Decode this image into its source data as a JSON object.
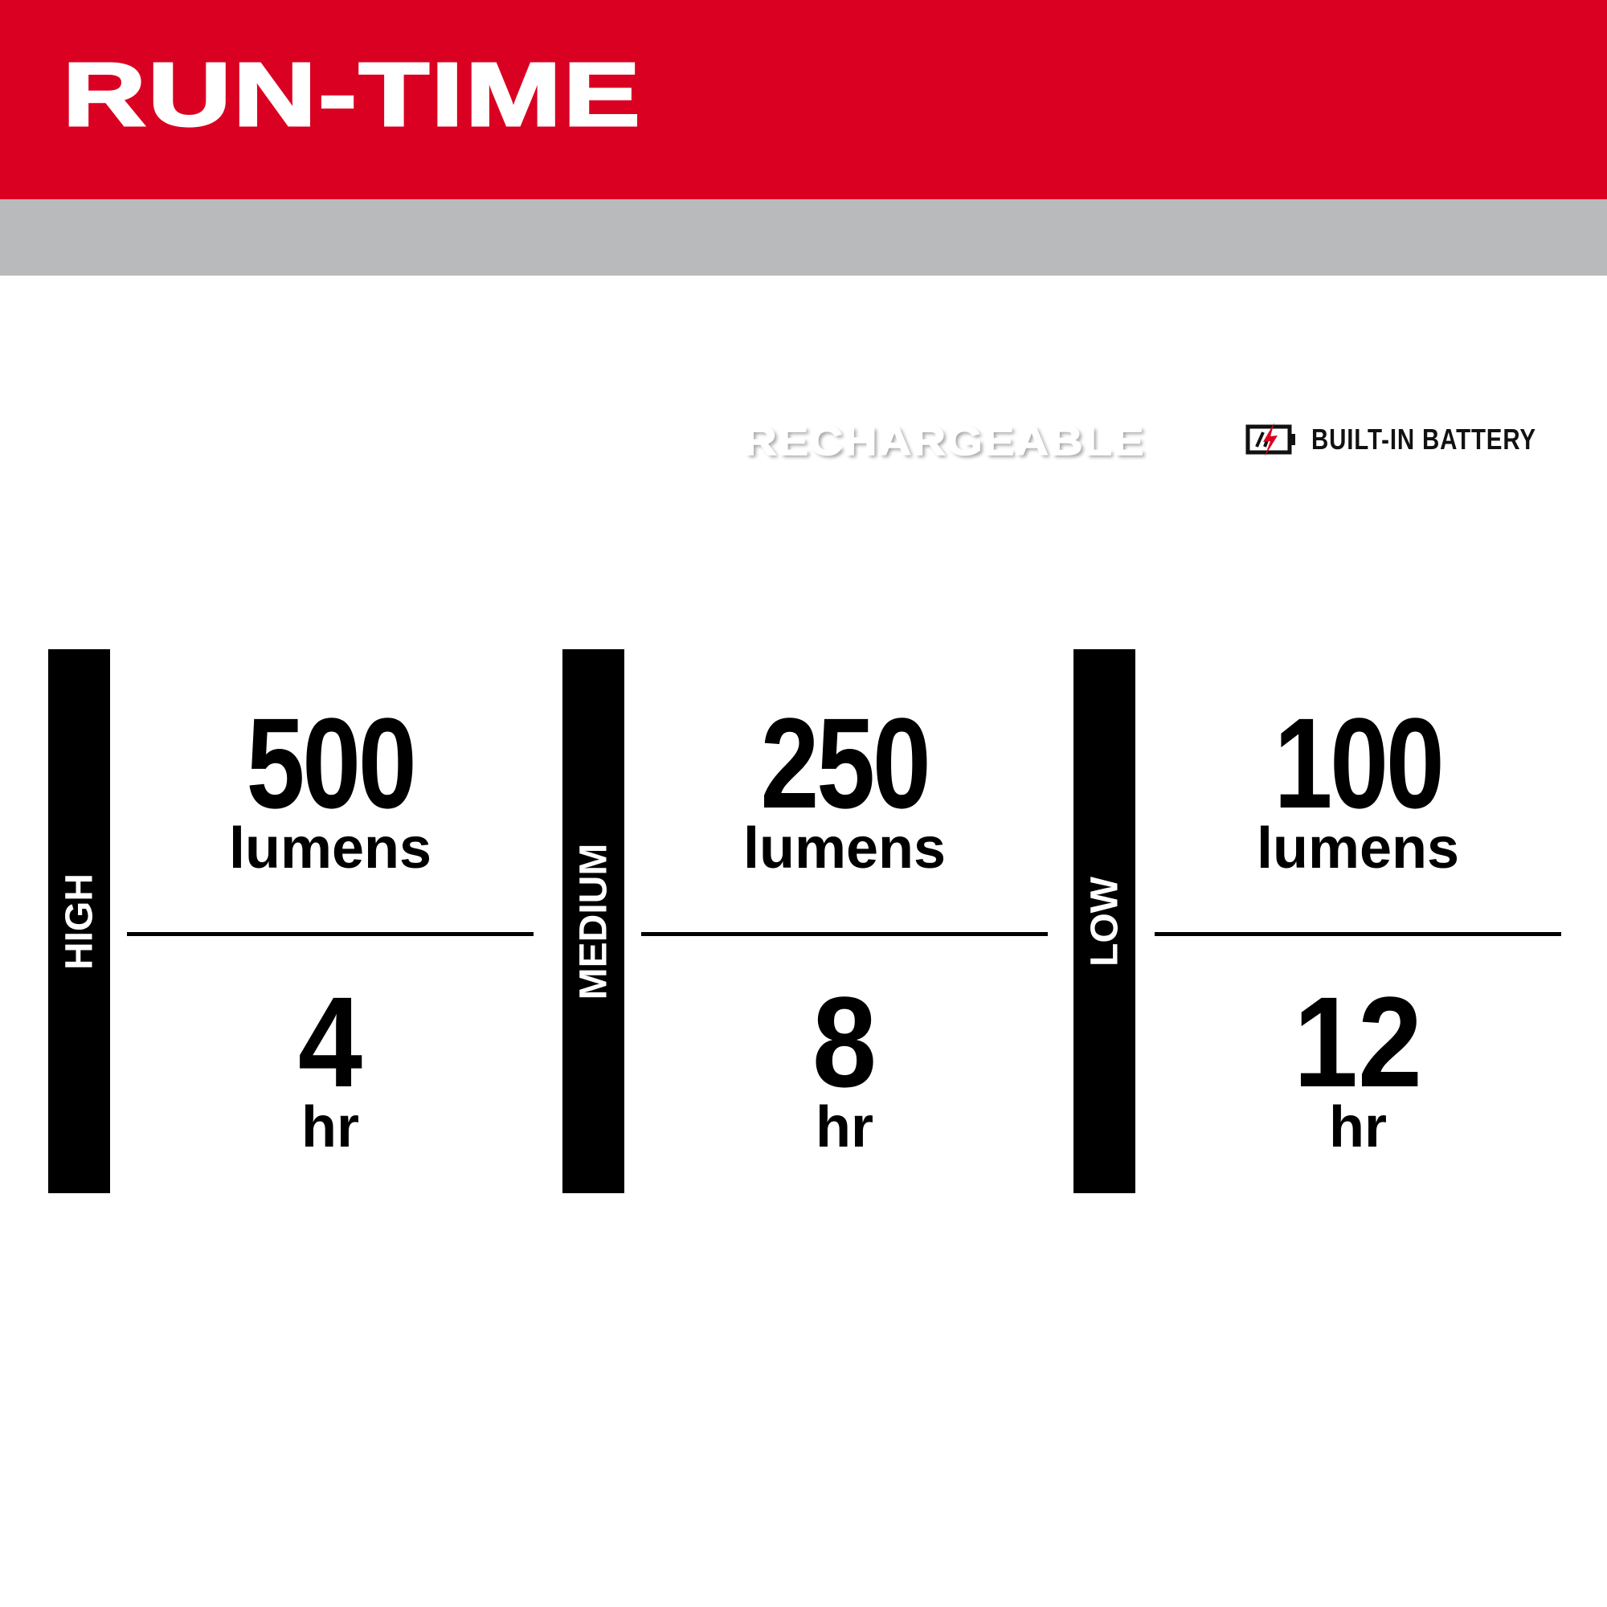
{
  "header": {
    "title": "RUN-TIME",
    "badge": "RECHARGEABLE",
    "battery_label": "BUILT-IN BATTERY",
    "battery_icon": "battery-bolt-icon"
  },
  "colors": {
    "brand_red": "#da0021",
    "band_gray": "#b9babb",
    "bolt_red": "#da0021"
  },
  "modes": [
    {
      "label": "HIGH",
      "lumens": "500",
      "lumens_unit": "lumens",
      "runtime": "4",
      "runtime_unit": "hr"
    },
    {
      "label": "MEDIUM",
      "lumens": "250",
      "lumens_unit": "lumens",
      "runtime": "8",
      "runtime_unit": "hr"
    },
    {
      "label": "LOW",
      "lumens": "100",
      "lumens_unit": "lumens",
      "runtime": "12",
      "runtime_unit": "hr"
    }
  ]
}
